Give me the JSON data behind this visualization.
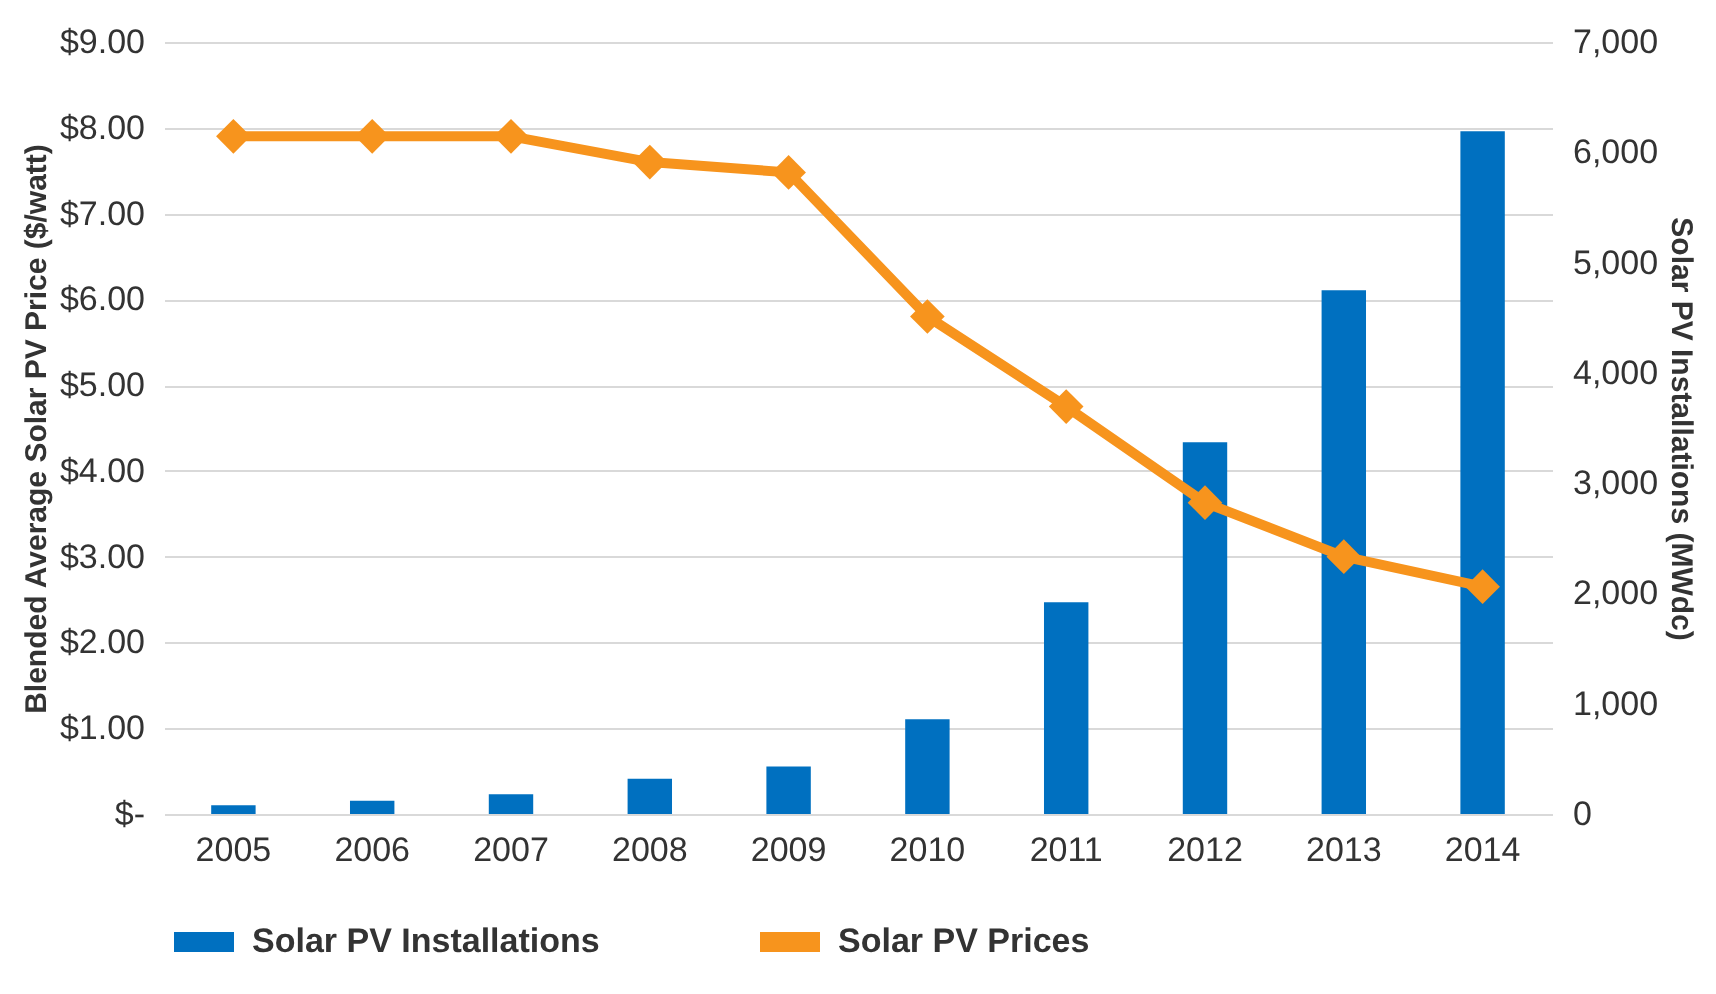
{
  "chart_data": {
    "type": "bar",
    "categories": [
      "2005",
      "2006",
      "2007",
      "2008",
      "2009",
      "2010",
      "2011",
      "2012",
      "2013",
      "2014"
    ],
    "series": [
      {
        "name": "Solar PV Installations",
        "axis": "y2",
        "color": "#0070c0",
        "values": [
          80,
          120,
          180,
          320,
          430,
          860,
          1920,
          3370,
          4750,
          6190
        ]
      },
      {
        "name": "Solar PV Prices",
        "type": "line",
        "color": "#f7941d",
        "marker": "diamond",
        "values": [
          7.9,
          7.9,
          7.9,
          7.6,
          7.48,
          5.8,
          4.75,
          3.63,
          3.0,
          2.65
        ]
      }
    ],
    "ylabel": "Blended Average Solar PV Price ($/watt)",
    "y2label": "Solar PV Installations (MWdc)",
    "ylim": [
      0,
      9
    ],
    "yticks": [
      {
        "value": 0,
        "label": "$-"
      },
      {
        "value": 1,
        "label": "$1.00"
      },
      {
        "value": 2,
        "label": "$2.00"
      },
      {
        "value": 3,
        "label": "$3.00"
      },
      {
        "value": 4,
        "label": "$4.00"
      },
      {
        "value": 5,
        "label": "$5.00"
      },
      {
        "value": 6,
        "label": "$6.00"
      },
      {
        "value": 7,
        "label": "$7.00"
      },
      {
        "value": 8,
        "label": "$8.00"
      },
      {
        "value": 9,
        "label": "$9.00"
      }
    ],
    "y2lim": [
      0,
      7000
    ],
    "y2ticks": [
      0,
      {
        "value": 1000,
        "label": "1,000"
      },
      {
        "value": 2000,
        "label": "2,000"
      },
      {
        "value": 3000,
        "label": "3,000"
      },
      {
        "value": 4000,
        "label": "4,000"
      },
      {
        "value": 5000,
        "label": "5,000"
      },
      {
        "value": 6000,
        "label": "6,000"
      },
      {
        "value": 7000,
        "label": "7,000"
      }
    ],
    "grid": "y",
    "legend": "bottom",
    "line_style": "solid"
  }
}
